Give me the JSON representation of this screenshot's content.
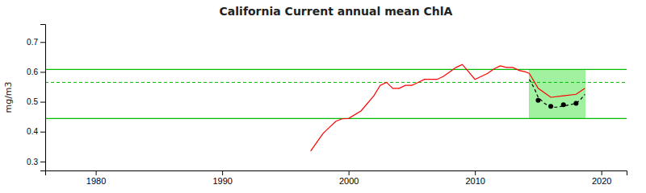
{
  "chart_data": {
    "type": "line",
    "title": "California Current annual mean ChlA",
    "ylabel": "mg/m3",
    "xlim": [
      1976,
      2022
    ],
    "ylim": [
      0.27,
      0.76
    ],
    "xticks": [
      1980,
      1990,
      2000,
      2010,
      2020
    ],
    "yticks": [
      0.3,
      0.4,
      0.5,
      0.6,
      0.7
    ],
    "grid": false,
    "highlight_box": {
      "x": [
        2014.3,
        2018.7
      ],
      "y": [
        0.444,
        0.608
      ],
      "color": "#90ee90"
    },
    "hlines": [
      {
        "value": 0.608,
        "color": "#00bb00",
        "line_style": "solid"
      },
      {
        "value": 0.444,
        "color": "#00bb00",
        "line_style": "solid"
      },
      {
        "value": 0.565,
        "color": "#00bb00",
        "line_style": "dashed"
      }
    ],
    "series": [
      {
        "type": "line",
        "color": "red",
        "line_style": "solid",
        "x": [
          1997,
          1997.5,
          1998,
          1998.5,
          1999,
          1999.5,
          2000,
          2001,
          2002,
          2002.5,
          2003,
          2003.5,
          2004,
          2004.5,
          2005,
          2005.5,
          2006,
          2006.5,
          2007,
          2007.5,
          2008,
          2008.5,
          2009,
          2009.5,
          2010,
          2010.5,
          2011,
          2011.5,
          2012,
          2012.5,
          2013,
          2013.5,
          2014,
          2014.3
        ],
        "values": [
          0.335,
          0.365,
          0.395,
          0.415,
          0.435,
          0.443,
          0.444,
          0.47,
          0.52,
          0.555,
          0.565,
          0.545,
          0.545,
          0.555,
          0.555,
          0.565,
          0.575,
          0.575,
          0.575,
          0.585,
          0.6,
          0.615,
          0.625,
          0.6,
          0.575,
          0.585,
          0.595,
          0.61,
          0.62,
          0.615,
          0.615,
          0.605,
          0.6,
          0.595
        ]
      },
      {
        "type": "line",
        "color": "red",
        "line_style": "solid",
        "x": [
          2014.3,
          2015,
          2016,
          2017,
          2018,
          2018.7
        ],
        "values": [
          0.595,
          0.545,
          0.515,
          0.52,
          0.525,
          0.545
        ]
      },
      {
        "type": "line",
        "color": "black",
        "line_style": "dashed",
        "x": [
          2014.3,
          2014.7,
          2015,
          2015.5,
          2016,
          2016.5,
          2017,
          2017.5,
          2018,
          2018.3,
          2018.7
        ],
        "values": [
          0.575,
          0.545,
          0.515,
          0.495,
          0.482,
          0.482,
          0.486,
          0.49,
          0.495,
          0.505,
          0.525
        ]
      },
      {
        "type": "scatter",
        "color": "black",
        "marker": "circle",
        "x": [
          2015,
          2016,
          2017,
          2018
        ],
        "values": [
          0.505,
          0.485,
          0.49,
          0.495
        ]
      }
    ]
  }
}
